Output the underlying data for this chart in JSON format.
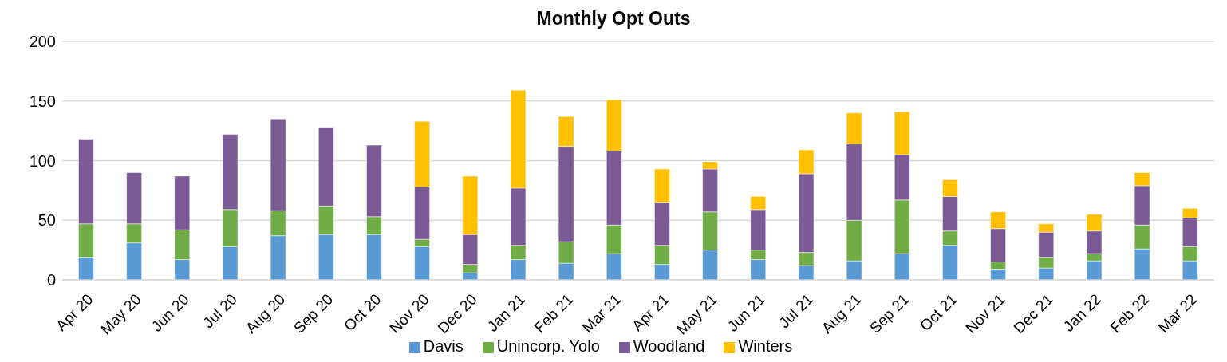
{
  "chart_data": {
    "type": "bar",
    "title": "Monthly Opt Outs",
    "stacked": true,
    "categories": [
      "Apr 20",
      "May 20",
      "Jun 20",
      "Jul 20",
      "Aug 20",
      "Sep 20",
      "Oct 20",
      "Nov 20",
      "Dec 20",
      "Jan 21",
      "Feb 21",
      "Mar 21",
      "Apr 21",
      "May 21",
      "Jun 21",
      "Jul 21",
      "Aug 21",
      "Sep 21",
      "Oct 21",
      "Nov 21",
      "Dec 21",
      "Jan 22",
      "Feb 22",
      "Mar 22"
    ],
    "series": [
      {
        "name": "Davis",
        "color": "#5b9bd5",
        "values": [
          19,
          31,
          17,
          28,
          37,
          38,
          38,
          28,
          6,
          17,
          14,
          22,
          13,
          25,
          17,
          12,
          16,
          22,
          29,
          9,
          10,
          16,
          26,
          16
        ]
      },
      {
        "name": "Unincorp. Yolo",
        "color": "#70ad47",
        "values": [
          28,
          16,
          25,
          31,
          21,
          24,
          15,
          6,
          7,
          12,
          18,
          24,
          16,
          32,
          8,
          11,
          34,
          45,
          12,
          6,
          9,
          6,
          20,
          12
        ]
      },
      {
        "name": "Woodland",
        "color": "#7b5b95",
        "values": [
          71,
          43,
          45,
          63,
          77,
          66,
          60,
          44,
          25,
          48,
          80,
          62,
          36,
          36,
          34,
          66,
          64,
          38,
          29,
          28,
          21,
          19,
          33,
          24
        ]
      },
      {
        "name": "Winters",
        "color": "#ffc000",
        "values": [
          0,
          0,
          0,
          0,
          0,
          0,
          0,
          55,
          49,
          82,
          25,
          43,
          28,
          6,
          11,
          20,
          26,
          36,
          14,
          14,
          7,
          14,
          11,
          8
        ]
      }
    ],
    "ylim": [
      0,
      200
    ],
    "yticks": [
      0,
      50,
      100,
      150,
      200
    ],
    "grid": "y",
    "legend": "bottom"
  }
}
